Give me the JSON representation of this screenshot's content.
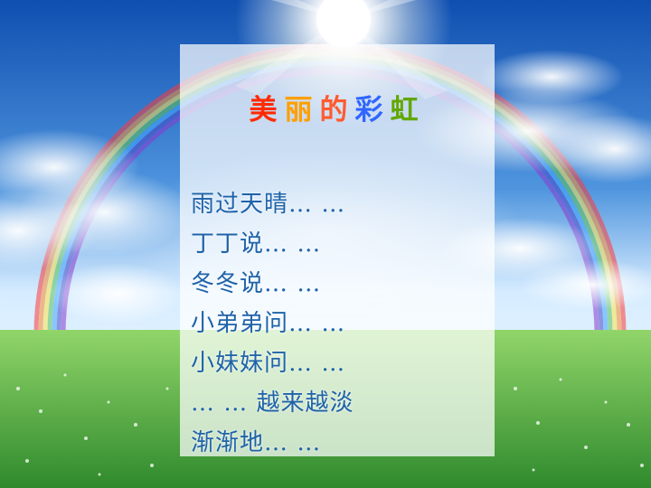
{
  "title": {
    "characters": [
      "美",
      "丽",
      "的",
      "彩",
      "虹"
    ],
    "colors": [
      "#ff2a00",
      "#ff9f00",
      "#ff5b2f",
      "#2f66ff",
      "#62a700"
    ]
  },
  "poem": {
    "lines": [
      "雨过天晴… …",
      "丁丁说… …",
      "冬冬说… …",
      "小弟弟问… …",
      "小妹妹问… …",
      "… …  越来越淡",
      "渐渐地… …"
    ],
    "text_color": "#1f63a9"
  },
  "scene": {
    "sky_top": "#0f4fb0",
    "sky_mid": "#4f95de",
    "sky_horizon": "#d6ecff",
    "grass_top": "#91d56a",
    "grass_bottom": "#2f8a2c",
    "sun_color": "#ffffff"
  }
}
